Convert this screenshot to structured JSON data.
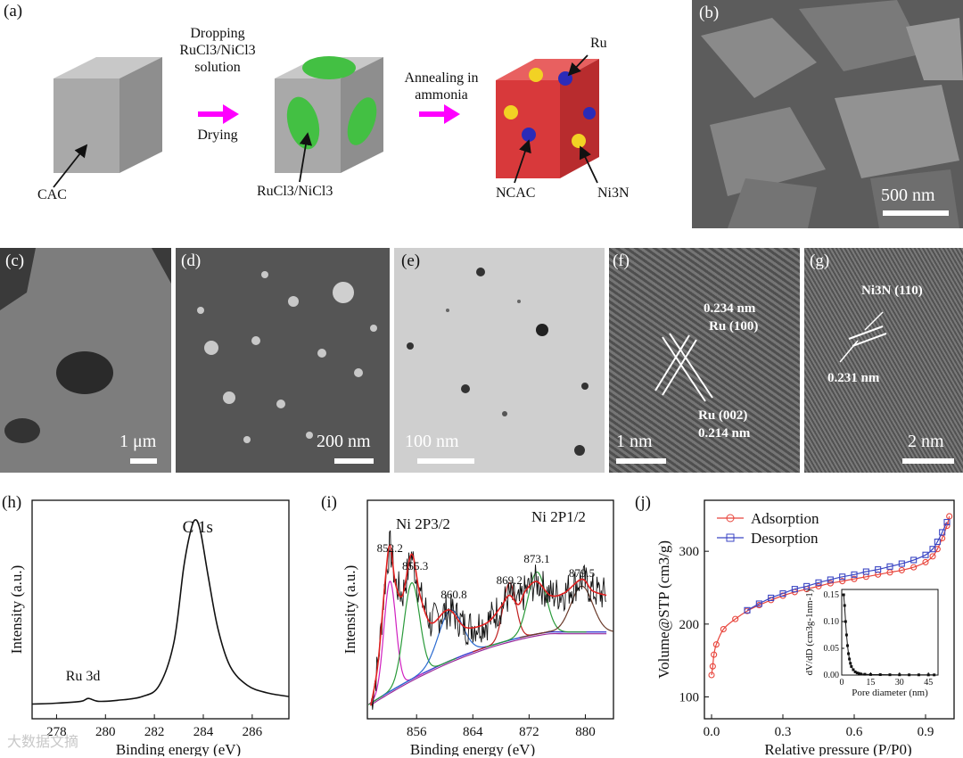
{
  "panel_a": {
    "label": "(a)",
    "step1_top": [
      "Dropping",
      "RuCl3/NiCl3",
      "solution"
    ],
    "step1_bottom": "Drying",
    "step2_top": [
      "Annealing in",
      "ammonia"
    ],
    "cube1_label": "CAC",
    "cube2_label": "RuCl3/NiCl3",
    "cube3_label": "NCAC",
    "ru_label": "Ru",
    "ni3n_label": "Ni3N",
    "colors": {
      "cube_gray": "#a9a9a9",
      "cube_red": "#d8393b",
      "green": "#43c043",
      "yellow": "#f2d224",
      "blue": "#2b2bb8",
      "arrow": "#ff00ff"
    }
  },
  "panel_b": {
    "label": "(b)",
    "scale": "500 nm"
  },
  "panel_c": {
    "label": "(c)",
    "scale": "1 μm"
  },
  "panel_d": {
    "label": "(d)",
    "scale": "200 nm"
  },
  "panel_e": {
    "label": "(e)",
    "scale": "100 nm"
  },
  "panel_f": {
    "label": "(f)",
    "scale": "1 nm",
    "ann1a": "0.234 nm",
    "ann1b": "Ru (100)",
    "ann2a": "Ru (002)",
    "ann2b": "0.214 nm"
  },
  "panel_g": {
    "label": "(g)",
    "scale": "2 nm",
    "ann1": "Ni3N (110)",
    "ann2": "0.231 nm"
  },
  "chart_data": [
    {
      "panel": "(h)",
      "type": "line",
      "xlabel": "Binding energy (eV)",
      "ylabel": "Intensity (a.u.)",
      "xlim": [
        277,
        287.5
      ],
      "xticks": [
        278,
        280,
        282,
        284,
        286
      ],
      "peaks": [
        {
          "label": "C 1s",
          "x": 283.7
        },
        {
          "label": "Ru 3d",
          "x": 279.3
        }
      ],
      "x": [
        277,
        278,
        279,
        279.3,
        279.7,
        280.5,
        281.5,
        282.2,
        282.8,
        283.2,
        283.5,
        283.7,
        283.9,
        284.2,
        284.6,
        285.1,
        285.8,
        286.6,
        287.5
      ],
      "y": [
        0.02,
        0.025,
        0.035,
        0.05,
        0.035,
        0.04,
        0.06,
        0.12,
        0.35,
        0.75,
        0.95,
        1.0,
        0.93,
        0.7,
        0.42,
        0.22,
        0.12,
        0.08,
        0.06
      ]
    },
    {
      "panel": "(i)",
      "type": "line",
      "xlabel": "Binding energy (eV)",
      "ylabel": "Intensity (a.u.)",
      "xlim": [
        849,
        884
      ],
      "xticks": [
        856,
        864,
        872,
        880
      ],
      "annotations": [
        {
          "text": "Ni 2P3/2"
        },
        {
          "text": "Ni 2P1/2"
        },
        {
          "text": "852.2",
          "x": 852.2
        },
        {
          "text": "855.3",
          "x": 855.3
        },
        {
          "text": "860.8",
          "x": 860.8
        },
        {
          "text": "869.2",
          "x": 869.2
        },
        {
          "text": "873.1",
          "x": 873.1
        },
        {
          "text": "879.5",
          "x": 879.5
        }
      ],
      "x": [
        849.5,
        850.5,
        851.5,
        852.2,
        853,
        854,
        855.3,
        856.5,
        858,
        860,
        861,
        863,
        866,
        868,
        869.2,
        870.5,
        871.5,
        873.1,
        875,
        877,
        879.5,
        881,
        883
      ],
      "y": [
        0.02,
        0.2,
        0.55,
        0.72,
        0.55,
        0.5,
        0.68,
        0.5,
        0.38,
        0.43,
        0.43,
        0.36,
        0.38,
        0.45,
        0.5,
        0.46,
        0.52,
        0.56,
        0.5,
        0.51,
        0.57,
        0.52,
        0.5
      ]
    },
    {
      "panel": "(j)",
      "type": "scatter",
      "xlabel": "Relative pressure (P/P0)",
      "ylabel": "Volume@STP (cm3/g)",
      "xlim": [
        -0.03,
        1.02
      ],
      "ylim": [
        70,
        370
      ],
      "xticks": [
        0.0,
        0.3,
        0.6,
        0.9
      ],
      "yticks": [
        100,
        200,
        300
      ],
      "legend": "top-left",
      "series": [
        {
          "name": "Adsorption",
          "color": "#e8453c",
          "x": [
            0.0,
            0.005,
            0.01,
            0.02,
            0.05,
            0.1,
            0.15,
            0.2,
            0.25,
            0.3,
            0.35,
            0.4,
            0.45,
            0.5,
            0.55,
            0.6,
            0.65,
            0.7,
            0.75,
            0.8,
            0.85,
            0.9,
            0.93,
            0.95,
            0.97,
            0.99,
            1.0
          ],
          "y": [
            130,
            142,
            158,
            172,
            193,
            207,
            218,
            226,
            233,
            239,
            244,
            248,
            252,
            256,
            259,
            262,
            265,
            268,
            271,
            274,
            278,
            285,
            293,
            303,
            318,
            335,
            348
          ]
        },
        {
          "name": "Desorption",
          "color": "#3b46c4",
          "x": [
            0.15,
            0.2,
            0.25,
            0.3,
            0.35,
            0.4,
            0.45,
            0.5,
            0.55,
            0.6,
            0.65,
            0.7,
            0.75,
            0.8,
            0.85,
            0.9,
            0.93,
            0.95,
            0.97,
            0.99
          ],
          "y": [
            219,
            228,
            236,
            242,
            248,
            252,
            257,
            261,
            265,
            268,
            272,
            275,
            279,
            283,
            288,
            295,
            303,
            313,
            326,
            340
          ]
        }
      ],
      "inset": {
        "xlabel": "Pore diameter (nm)",
        "ylabel": "dV/dD (cm3g-1nm-1)",
        "xlim": [
          0,
          50
        ],
        "ylim": [
          0,
          0.16
        ],
        "xticks": [
          0,
          15,
          30,
          45
        ],
        "yticks": [
          0.0,
          0.05,
          0.1,
          0.15
        ],
        "x": [
          1,
          1.5,
          2,
          2.5,
          3,
          3.5,
          4,
          4.5,
          5,
          6,
          7,
          8,
          9,
          10,
          12,
          15,
          20,
          25,
          30,
          35,
          40,
          45,
          48
        ],
        "y": [
          0.15,
          0.13,
          0.1,
          0.075,
          0.055,
          0.04,
          0.03,
          0.022,
          0.016,
          0.01,
          0.006,
          0.004,
          0.003,
          0.002,
          0.0015,
          0.001,
          0.0008,
          0.0006,
          0.0005,
          0.0004,
          0.0004,
          0.0003,
          0.0003
        ]
      }
    }
  ],
  "watermark": "大数据文摘"
}
